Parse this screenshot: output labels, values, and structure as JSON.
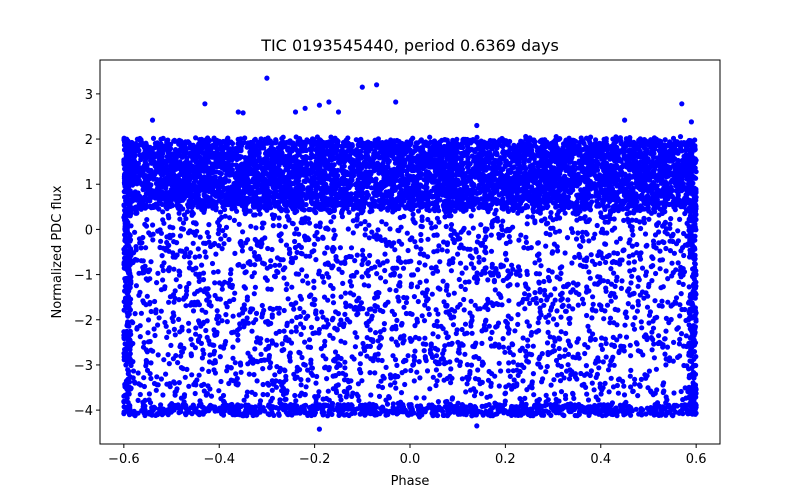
{
  "chart_data": {
    "type": "scatter",
    "title": "TIC 0193545440, period 0.6369 days",
    "xlabel": "Phase",
    "ylabel": "Normalized PDC flux",
    "xlim": [
      -0.65,
      0.65
    ],
    "ylim": [
      -4.75,
      3.75
    ],
    "xticks": [
      -0.6,
      -0.4,
      -0.2,
      0.0,
      0.2,
      0.4,
      0.6
    ],
    "xtick_labels": [
      "−0.6",
      "−0.4",
      "−0.2",
      "0.0",
      "0.2",
      "0.4",
      "0.6"
    ],
    "yticks": [
      -4,
      -3,
      -2,
      -1,
      0,
      1,
      2,
      3
    ],
    "ytick_labels": [
      "−4",
      "−3",
      "−2",
      "−1",
      "0",
      "1",
      "2",
      "3"
    ],
    "grid": false,
    "marker_color": "#0000ff",
    "series": [
      {
        "name": "flux",
        "phase_range": [
          -0.6,
          0.6
        ],
        "dense_band": [
          0.45,
          2.0
        ],
        "sparse_range": [
          -4.1,
          0.45
        ],
        "outliers": [
          {
            "x": -0.3,
            "y": 3.35
          },
          {
            "x": -0.07,
            "y": 3.2
          },
          {
            "x": -0.1,
            "y": 3.15
          },
          {
            "x": -0.03,
            "y": 2.82
          },
          {
            "x": -0.17,
            "y": 2.82
          },
          {
            "x": -0.43,
            "y": 2.78
          },
          {
            "x": -0.19,
            "y": 2.75
          },
          {
            "x": 0.57,
            "y": 2.78
          },
          {
            "x": -0.22,
            "y": 2.68
          },
          {
            "x": -0.35,
            "y": 2.58
          },
          {
            "x": -0.36,
            "y": 2.6
          },
          {
            "x": -0.24,
            "y": 2.6
          },
          {
            "x": -0.15,
            "y": 2.6
          },
          {
            "x": -0.54,
            "y": 2.42
          },
          {
            "x": 0.45,
            "y": 2.42
          },
          {
            "x": 0.59,
            "y": 2.38
          },
          {
            "x": 0.14,
            "y": 2.3
          },
          {
            "x": -0.19,
            "y": -4.42
          },
          {
            "x": 0.14,
            "y": -4.35
          },
          {
            "x": -0.47,
            "y": -4.1
          },
          {
            "x": 0.02,
            "y": -4.15
          },
          {
            "x": 0.25,
            "y": -4.05
          }
        ]
      }
    ]
  }
}
